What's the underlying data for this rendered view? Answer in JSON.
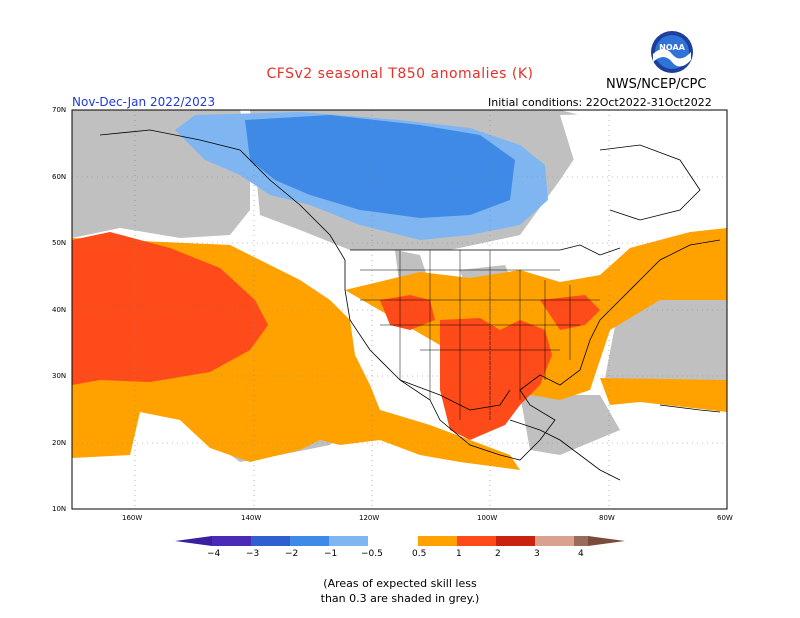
{
  "title": "CFSv2 seasonal T850 anomalies (K)",
  "agency": "NWS/NCEP/CPC",
  "season": "Nov-Dec-Jan 2022/2023",
  "initial_conditions": "Initial conditions: 22Oct2022-31Oct2022",
  "logo_text": "NOAA",
  "lat_labels": [
    "70N",
    "60N",
    "50N",
    "40N",
    "30N",
    "20N",
    "10N"
  ],
  "lon_labels": [
    "160W",
    "140W",
    "120W",
    "100W",
    "80W",
    "60W"
  ],
  "colorbar": {
    "labels": [
      "−4",
      "−3",
      "−2",
      "−1",
      "−0.5",
      "0.5",
      "1",
      "2",
      "3",
      "4"
    ],
    "colors": [
      "#4a2bb8",
      "#2f5fd0",
      "#3e8ae6",
      "#7fb6f2",
      "#ffffff",
      "#ffa200",
      "#ff4a1a",
      "#c9220f",
      "#d8a28f",
      "#7a4a3a"
    ]
  },
  "footnote_line1": "(Areas of expected skill less",
  "footnote_line2": "than 0.3 are shaded in grey.)"
}
